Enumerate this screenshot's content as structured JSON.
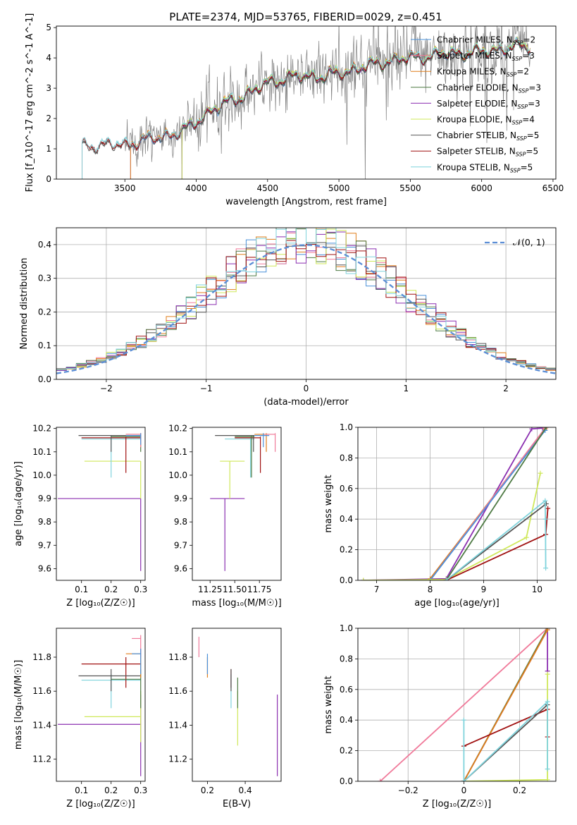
{
  "figure": {
    "title": "PLATE=2374, MJD=53765, FIBERID=0029, z=0.451"
  },
  "colors": {
    "Chabrier MILES": "#4a90d9",
    "Salpeter MILES": "#f07a9a",
    "Kroupa MILES": "#e07d1a",
    "Chabrier ELODIE": "#4e7a44",
    "Salpeter ELODIE": "#8b2fb0",
    "Kroupa ELODIE": "#cfe85a",
    "Chabrier STELIB": "#555555",
    "Salpeter STELIB": "#a01010",
    "Kroupa STELIB": "#7fd3dc",
    "normal_curve": "#5b8ed6",
    "data": "#808080",
    "grid": "#b0b0b0"
  },
  "chart_data": [
    {
      "id": "spectrum",
      "type": "line",
      "xlabel": "wavelength [Angstrom, rest frame]",
      "ylabel": "Flux [f_λ10^-17 erg cm^-2 s^-1 A^-1]",
      "xlim": [
        3020,
        6520
      ],
      "ylim": [
        0,
        5.05
      ],
      "xticks": [
        3500,
        4000,
        4500,
        5000,
        5500,
        6000,
        6500
      ],
      "yticks": [
        0,
        1,
        2,
        3,
        4,
        5
      ],
      "grid": false,
      "legend_position": "right",
      "data_range": [
        3200,
        6340
      ],
      "legend": [
        {
          "model": "Chabrier MILES",
          "label": "Chabrier MILES, N",
          "sub": "SSP",
          "n": "=2"
        },
        {
          "model": "Salpeter MILES",
          "label": "Salpeter MILES, N",
          "sub": "SSP",
          "n": "=3"
        },
        {
          "model": "Kroupa MILES",
          "label": "Kroupa MILES, N",
          "sub": "SSP",
          "n": "=2"
        },
        {
          "model": "Chabrier ELODIE",
          "label": "Chabrier ELODIE, N",
          "sub": "SSP",
          "n": "=3"
        },
        {
          "model": "Salpeter ELODIE",
          "label": "Salpeter ELODIE, N",
          "sub": "SSP",
          "n": "=3"
        },
        {
          "model": "Kroupa ELODIE",
          "label": "Kroupa ELODIE, N",
          "sub": "SSP",
          "n": "=4"
        },
        {
          "model": "Chabrier STELIB",
          "label": "Chabrier STELIB, N",
          "sub": "SSP",
          "n": "=5"
        },
        {
          "model": "Salpeter STELIB",
          "label": "Salpeter STELIB, N",
          "sub": "SSP",
          "n": "=5"
        },
        {
          "model": "Kroupa STELIB",
          "label": "Kroupa STELIB, N",
          "sub": "SSP",
          "n": "=5"
        }
      ],
      "continuum": [
        [
          3200,
          1.1
        ],
        [
          3500,
          1.15
        ],
        [
          3700,
          1.35
        ],
        [
          3850,
          1.5
        ],
        [
          3950,
          1.7
        ],
        [
          4050,
          2.1
        ],
        [
          4200,
          2.5
        ],
        [
          4400,
          2.9
        ],
        [
          4500,
          3.2
        ],
        [
          4700,
          3.4
        ],
        [
          4900,
          3.4
        ],
        [
          5050,
          3.55
        ],
        [
          5200,
          3.75
        ],
        [
          5400,
          3.95
        ],
        [
          5600,
          4.05
        ],
        [
          5800,
          4.15
        ],
        [
          6000,
          4.2
        ],
        [
          6200,
          4.35
        ],
        [
          6340,
          4.4
        ]
      ],
      "model_starts": {
        "MILES": 3540,
        "ELODIE": 3900,
        "STELIB": 3200
      }
    },
    {
      "id": "residuals",
      "type": "line",
      "xlabel": "(data-model)/error",
      "ylabel": "Normed distribution",
      "xlim": [
        -2.5,
        2.5
      ],
      "ylim": [
        0,
        0.45
      ],
      "xticks": [
        -2,
        -1,
        0,
        1,
        2
      ],
      "yticks": [
        0.0,
        0.1,
        0.2,
        0.3,
        0.4
      ],
      "grid": true,
      "legend_position": "top-right",
      "curve_label": "𝒩(0, 1)",
      "bin_edges_start": -2.5,
      "bin_width": 0.1,
      "n_bins": 50
    },
    {
      "id": "age_vs_Z",
      "type": "scatter",
      "xlabel": "Z [log₁₀(Z/Z☉)]",
      "ylabel": "age  [log₁₀(age/yr)]",
      "xlim": [
        0.015,
        0.315
      ],
      "ylim": [
        9.55,
        10.205
      ],
      "xticks": [
        0.1,
        0.2,
        0.3
      ],
      "yticks": [
        9.6,
        9.7,
        9.8,
        9.9,
        10.0,
        10.1,
        10.2
      ],
      "grid": false,
      "points": [
        {
          "model": "Salpeter ELODIE",
          "x": 0.3,
          "xlo": 0.02,
          "xhi": 0.3,
          "y": 9.9,
          "ylo": 9.59,
          "yhi": 9.9
        },
        {
          "model": "Kroupa ELODIE",
          "x": 0.3,
          "xlo": 0.11,
          "xhi": 0.3,
          "y": 10.06,
          "ylo": 9.9,
          "yhi": 10.06
        },
        {
          "model": "Kroupa STELIB",
          "x": 0.2,
          "xlo": 0.1,
          "xhi": 0.3,
          "y": 10.155,
          "ylo": 9.99,
          "yhi": 10.16
        },
        {
          "model": "Salpeter STELIB",
          "x": 0.25,
          "xlo": 0.1,
          "xhi": 0.3,
          "y": 10.16,
          "ylo": 10.01,
          "yhi": 10.165
        },
        {
          "model": "Chabrier STELIB",
          "x": 0.2,
          "xlo": 0.09,
          "xhi": 0.3,
          "y": 10.17,
          "ylo": 10.1,
          "yhi": 10.17
        },
        {
          "model": "Chabrier ELODIE",
          "x": 0.3,
          "xlo": 0.2,
          "xhi": 0.3,
          "y": 10.165,
          "ylo": 10.1,
          "yhi": 10.17
        },
        {
          "model": "Kroupa MILES",
          "x": 0.3,
          "xlo": 0.25,
          "xhi": 0.3,
          "y": 10.175,
          "ylo": 10.12,
          "yhi": 10.18
        },
        {
          "model": "Salpeter MILES",
          "x": 0.3,
          "xlo": 0.25,
          "xhi": 0.3,
          "y": 10.175,
          "ylo": 10.12,
          "yhi": 10.18
        },
        {
          "model": "Chabrier MILES",
          "x": 0.3,
          "xlo": 0.25,
          "xhi": 0.3,
          "y": 10.17,
          "ylo": 10.13,
          "yhi": 10.18
        }
      ]
    },
    {
      "id": "age_vs_mass",
      "type": "scatter",
      "xlabel": "mass [log₁₀(M/M☉)]",
      "ylabel": "",
      "xlim": [
        11.07,
        11.97
      ],
      "ylim": [
        9.55,
        10.205
      ],
      "xticks": [
        11.25,
        11.5,
        11.75
      ],
      "xticklabels": [
        "11.25",
        "11.50",
        "11.75"
      ],
      "yticks": [
        9.6,
        9.7,
        9.8,
        9.9,
        10.0,
        10.1,
        10.2
      ],
      "grid": false,
      "points": [
        {
          "model": "Salpeter ELODIE",
          "x": 11.4,
          "xlo": 11.25,
          "xhi": 11.6,
          "y": 9.9,
          "ylo": 9.59,
          "yhi": 9.9
        },
        {
          "model": "Kroupa ELODIE",
          "x": 11.45,
          "xlo": 11.35,
          "xhi": 11.6,
          "y": 10.06,
          "ylo": 9.9,
          "yhi": 10.06
        },
        {
          "model": "Kroupa STELIB",
          "x": 11.66,
          "xlo": 11.4,
          "xhi": 11.7,
          "y": 10.155,
          "ylo": 9.99,
          "yhi": 10.16
        },
        {
          "model": "Salpeter STELIB",
          "x": 11.76,
          "xlo": 11.5,
          "xhi": 11.76,
          "y": 10.16,
          "ylo": 10.01,
          "yhi": 10.165
        },
        {
          "model": "Chabrier STELIB",
          "x": 11.69,
          "xlo": 11.3,
          "xhi": 11.7,
          "y": 10.17,
          "ylo": 10.1,
          "yhi": 10.17
        },
        {
          "model": "Chabrier ELODIE",
          "x": 11.67,
          "xlo": 11.5,
          "xhi": 11.7,
          "y": 10.165,
          "ylo": 9.99,
          "yhi": 10.17
        },
        {
          "model": "Kroupa MILES",
          "x": 11.82,
          "xlo": 11.7,
          "xhi": 11.85,
          "y": 10.175,
          "ylo": 10.1,
          "yhi": 10.18
        },
        {
          "model": "Salpeter MILES",
          "x": 11.91,
          "xlo": 11.8,
          "xhi": 11.91,
          "y": 10.175,
          "ylo": 10.1,
          "yhi": 10.18
        },
        {
          "model": "Chabrier MILES",
          "x": 11.79,
          "xlo": 11.7,
          "xhi": 11.85,
          "y": 10.17,
          "ylo": 10.12,
          "yhi": 10.18
        }
      ]
    },
    {
      "id": "weight_vs_age",
      "type": "line",
      "xlabel": "age  [log₁₀(age/yr)]",
      "ylabel": "mass weight",
      "xlim": [
        6.65,
        10.35
      ],
      "ylim": [
        0,
        1.0
      ],
      "xticks": [
        7,
        8,
        9,
        10
      ],
      "yticks": [
        0.0,
        0.2,
        0.4,
        0.6,
        0.8,
        1.0
      ],
      "grid": true,
      "series": [
        {
          "model": "Salpeter ELODIE",
          "x": [
            6.75,
            8.3,
            9.9,
            10.1
          ],
          "y": [
            0.0,
            0.01,
            0.99,
            0.995
          ]
        },
        {
          "model": "Kroupa MILES",
          "x": [
            8.0,
            10.15
          ],
          "y": [
            0.01,
            0.99
          ]
        },
        {
          "model": "Salpeter MILES",
          "x": [
            8.0,
            10.15
          ],
          "y": [
            0.0,
            0.995
          ]
        },
        {
          "model": "Chabrier MILES",
          "x": [
            8.0,
            10.15
          ],
          "y": [
            0.0,
            0.98
          ]
        },
        {
          "model": "Chabrier ELODIE",
          "x": [
            8.3,
            10.17
          ],
          "y": [
            0.0,
            1.0
          ]
        },
        {
          "model": "Kroupa ELODIE",
          "x": [
            6.75,
            8.3,
            9.8,
            10.06
          ],
          "y": [
            0.0,
            0.005,
            0.28,
            0.7
          ]
        },
        {
          "model": "Chabrier STELIB",
          "x": [
            8.3,
            10.17
          ],
          "y": [
            0.0,
            0.5
          ]
        },
        {
          "model": "Salpeter STELIB",
          "x": [
            8.3,
            10.16,
            10.2
          ],
          "y": [
            0.0,
            0.3,
            0.47
          ]
        },
        {
          "model": "Kroupa STELIB",
          "x": [
            8.3,
            10.15,
            10.155,
            10.16
          ],
          "y": [
            0.0,
            0.52,
            0.4,
            0.08
          ]
        }
      ]
    },
    {
      "id": "mass_vs_Z",
      "type": "scatter",
      "xlabel": "Z [log₁₀(Z/Z☉)]",
      "ylabel": "mass [log₁₀(M/M☉)]",
      "xlim": [
        0.015,
        0.315
      ],
      "ylim": [
        11.07,
        11.97
      ],
      "xticks": [
        0.1,
        0.2,
        0.3
      ],
      "yticks": [
        11.2,
        11.4,
        11.6,
        11.8
      ],
      "grid": false,
      "points": [
        {
          "model": "Salpeter ELODIE",
          "x": 0.3,
          "xlo": 0.02,
          "xhi": 0.3,
          "y": 11.405,
          "ylo": 11.1,
          "yhi": 11.58
        },
        {
          "model": "Kroupa ELODIE",
          "x": 0.3,
          "xlo": 0.11,
          "xhi": 0.3,
          "y": 11.45,
          "ylo": 11.3,
          "yhi": 11.6
        },
        {
          "model": "Kroupa STELIB",
          "x": 0.2,
          "xlo": 0.1,
          "xhi": 0.3,
          "y": 11.665,
          "ylo": 11.5,
          "yhi": 11.7
        },
        {
          "model": "Salpeter STELIB",
          "x": 0.25,
          "xlo": 0.1,
          "xhi": 0.3,
          "y": 11.76,
          "ylo": 11.62,
          "yhi": 11.8
        },
        {
          "model": "Chabrier STELIB",
          "x": 0.2,
          "xlo": 0.09,
          "xhi": 0.3,
          "y": 11.69,
          "ylo": 11.6,
          "yhi": 11.73
        },
        {
          "model": "Chabrier ELODIE",
          "x": 0.3,
          "xlo": 0.2,
          "xhi": 0.3,
          "y": 11.67,
          "ylo": 11.5,
          "yhi": 11.73
        },
        {
          "model": "Kroupa MILES",
          "x": 0.3,
          "xlo": 0.25,
          "xhi": 0.3,
          "y": 11.82,
          "ylo": 11.68,
          "yhi": 11.85
        },
        {
          "model": "Salpeter MILES",
          "x": 0.3,
          "xlo": 0.27,
          "xhi": 0.3,
          "y": 11.91,
          "ylo": 11.8,
          "yhi": 11.93
        },
        {
          "model": "Chabrier MILES",
          "x": 0.3,
          "xlo": 0.27,
          "xhi": 0.3,
          "y": 11.82,
          "ylo": 11.7,
          "yhi": 11.85
        }
      ]
    },
    {
      "id": "mass_vs_ebv",
      "type": "scatter",
      "xlabel": "E(B-V)",
      "ylabel": "",
      "xlim": [
        0.12,
        0.59
      ],
      "ylim": [
        11.07,
        11.97
      ],
      "xticks": [
        0.2,
        0.4
      ],
      "yticks": [
        11.2,
        11.4,
        11.6,
        11.8
      ],
      "grid": false,
      "points": [
        {
          "model": "Salpeter ELODIE",
          "x": 0.57,
          "y": 11.405,
          "ylo": 11.1,
          "yhi": 11.58
        },
        {
          "model": "Kroupa ELODIE",
          "x": 0.36,
          "y": 11.45,
          "ylo": 11.28,
          "yhi": 11.6
        },
        {
          "model": "Kroupa STELIB",
          "x": 0.325,
          "y": 11.665,
          "ylo": 11.5,
          "yhi": 11.7
        },
        {
          "model": "Salpeter STELIB",
          "x": 0.325,
          "y": 11.7,
          "ylo": 11.62,
          "yhi": 11.73
        },
        {
          "model": "Chabrier STELIB",
          "x": 0.325,
          "y": 11.69,
          "ylo": 11.6,
          "yhi": 11.73
        },
        {
          "model": "Chabrier ELODIE",
          "x": 0.36,
          "y": 11.63,
          "ylo": 11.5,
          "yhi": 11.68
        },
        {
          "model": "Kroupa MILES",
          "x": 0.2,
          "y": 11.75,
          "ylo": 11.68,
          "yhi": 11.8
        },
        {
          "model": "Salpeter MILES",
          "x": 0.155,
          "y": 11.87,
          "ylo": 11.8,
          "yhi": 11.92
        },
        {
          "model": "Chabrier MILES",
          "x": 0.2,
          "y": 11.77,
          "ylo": 11.7,
          "yhi": 11.82
        }
      ]
    },
    {
      "id": "weight_vs_Z",
      "type": "line",
      "xlabel": "Z [log₁₀(Z/Z☉)]",
      "ylabel": "mass weight",
      "xlim": [
        -0.38,
        0.33
      ],
      "ylim": [
        0,
        1.0
      ],
      "xticks": [
        -0.2,
        0.0,
        0.2
      ],
      "yticks": [
        0.0,
        0.2,
        0.4,
        0.6,
        0.8,
        1.0
      ],
      "grid": true,
      "series": [
        {
          "model": "Salpeter MILES",
          "x": [
            -0.3,
            0.3
          ],
          "y": [
            0.0,
            1.0
          ]
        },
        {
          "model": "Salpeter ELODIE",
          "x": [
            0.0,
            0.3,
            0.3
          ],
          "y": [
            0.0,
            0.99,
            0.72
          ]
        },
        {
          "model": "Chabrier ELODIE",
          "x": [
            0.0,
            0.3
          ],
          "y": [
            0.0,
            1.0
          ]
        },
        {
          "model": "Kroupa MILES",
          "x": [
            0.0,
            0.3
          ],
          "y": [
            0.0,
            0.99
          ]
        },
        {
          "model": "Salpeter STELIB",
          "x": [
            0.0,
            0.3,
            0.3
          ],
          "y": [
            0.23,
            0.47,
            0.29
          ]
        },
        {
          "model": "Kroupa ELODIE",
          "x": [
            0.0,
            0.3,
            0.3
          ],
          "y": [
            0.0,
            0.01,
            0.7
          ]
        },
        {
          "model": "Chabrier STELIB",
          "x": [
            0.0,
            0.3
          ],
          "y": [
            0.0,
            0.5
          ]
        },
        {
          "model": "Kroupa STELIB",
          "x": [
            0.0,
            0.0,
            0.3,
            0.3
          ],
          "y": [
            0.4,
            0.0,
            0.52,
            0.08
          ]
        }
      ]
    }
  ]
}
